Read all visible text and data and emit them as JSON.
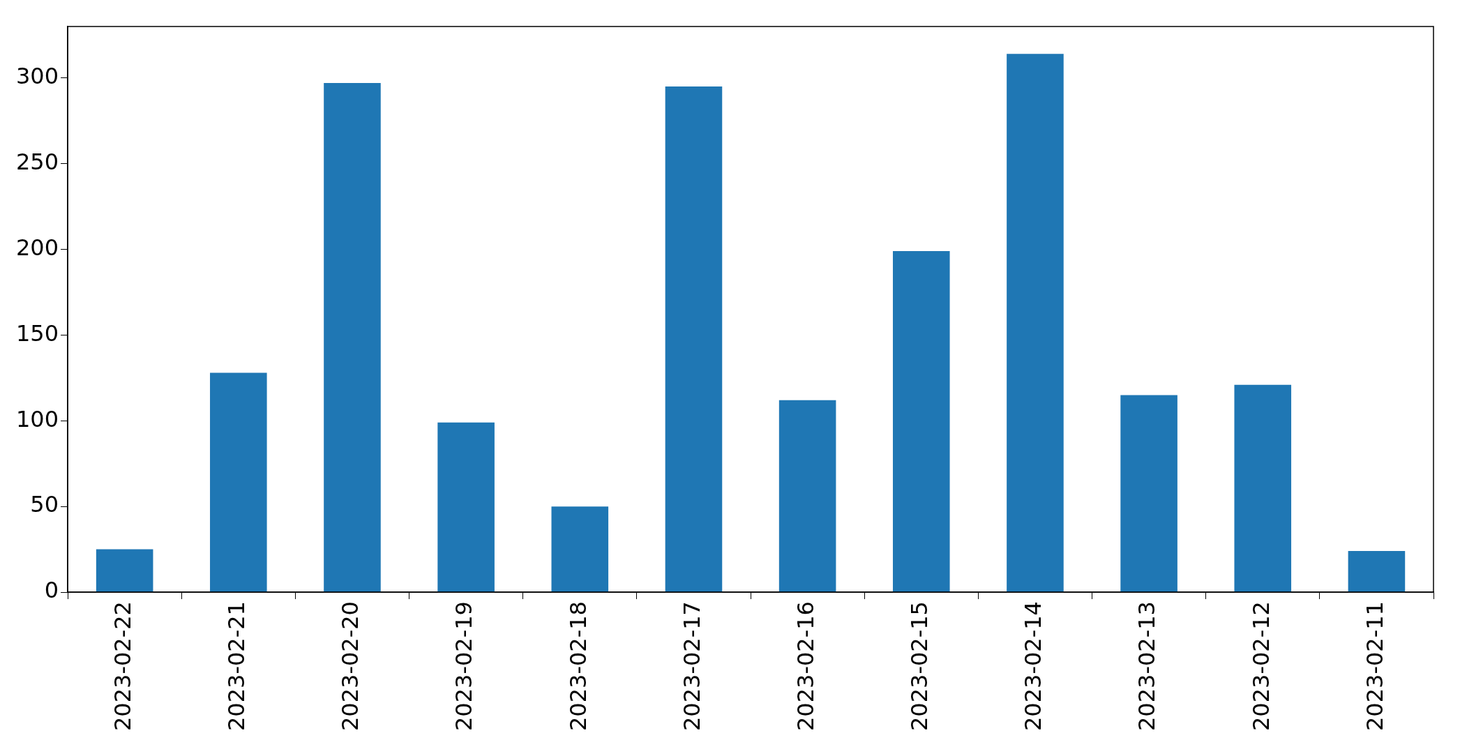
{
  "chart_data": {
    "type": "bar",
    "categories": [
      "2023-02-22",
      "2023-02-21",
      "2023-02-20",
      "2023-02-19",
      "2023-02-18",
      "2023-02-17",
      "2023-02-16",
      "2023-02-15",
      "2023-02-14",
      "2023-02-13",
      "2023-02-12",
      "2023-02-11"
    ],
    "values": [
      25,
      128,
      297,
      99,
      50,
      295,
      112,
      199,
      314,
      115,
      121,
      24
    ],
    "color": "#1f77b4",
    "ylim": [
      0,
      330
    ],
    "yticks": [
      0,
      50,
      100,
      150,
      200,
      250,
      300
    ],
    "grid": false,
    "legend": false
  }
}
